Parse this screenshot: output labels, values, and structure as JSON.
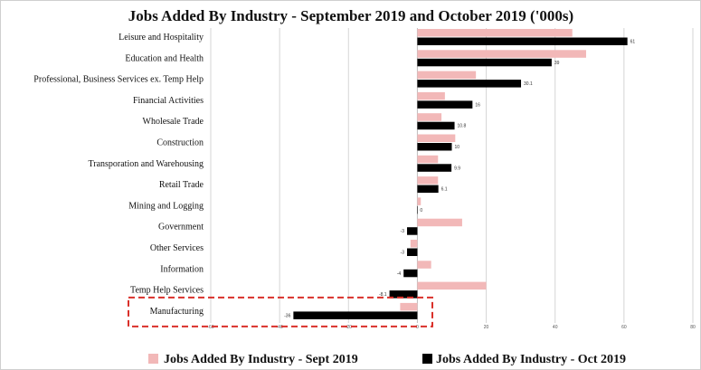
{
  "chart_data": {
    "type": "bar",
    "orientation": "horizontal",
    "title": "Jobs Added By Industry - September 2019 and October 2019 ('000s)",
    "categories": [
      "Leisure and Hospitality",
      "Education and Health",
      "Professional, Business Services ex. Temp Help",
      "Financial Activities",
      "Wholesale Trade",
      "Construction",
      "Transporation and Warehousing",
      "Retail Trade",
      "Mining and Logging",
      "Government",
      "Other Services",
      "Information",
      "Temp Help Services",
      "Manufacturing"
    ],
    "series": [
      {
        "name": "Jobs Added By Industry - Sept 2019",
        "color": "#f2b8b8",
        "values": [
          45,
          49,
          17,
          8,
          7,
          11,
          6,
          6,
          1,
          13,
          -2,
          4,
          20,
          -5
        ],
        "labels": null
      },
      {
        "name": "Jobs Added By Industry - Oct 2019",
        "color": "#000000",
        "values": [
          61,
          39,
          30.1,
          16,
          10.8,
          10,
          9.9,
          6.1,
          0,
          -3,
          -3,
          -4,
          -8.1,
          -36
        ],
        "labels": [
          "61",
          "39",
          "30.1",
          "16",
          "10.8",
          "10",
          "9.9",
          "6.1",
          "0",
          "-3",
          "-3",
          "-4",
          "-8.1",
          "-36"
        ]
      }
    ],
    "xlim": [
      -60,
      80
    ],
    "xticks": [
      -60,
      -40,
      -20,
      0,
      20,
      40,
      60,
      80
    ],
    "xtick_labels": [
      "-60",
      "-40",
      "-20",
      "0",
      "20",
      "40",
      "60",
      "80"
    ],
    "grid": true,
    "legend_position": "bottom",
    "highlight": {
      "category": "Manufacturing",
      "style": "dashed-box",
      "color": "#d9302a"
    }
  }
}
